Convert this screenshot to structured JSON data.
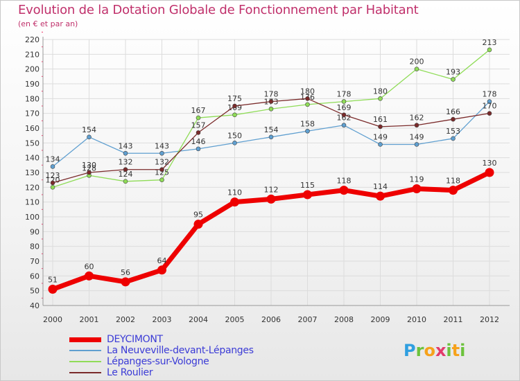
{
  "title": "Evolution de la Dotation Globale de Fonctionnement par Habitant",
  "subtitle": "(en € et par an)",
  "logo": {
    "letters": [
      "P",
      "r",
      "o",
      "x",
      "i",
      "t",
      "i"
    ]
  },
  "chart_data": {
    "type": "line",
    "title": "Evolution de la Dotation Globale de Fonctionnement par Habitant",
    "subtitle": "(en € et par an)",
    "xlabel": "",
    "ylabel": "",
    "ylim": [
      40,
      220
    ],
    "ytick_step": 10,
    "grid": true,
    "legend_position": "bottom-left",
    "categories": [
      "2000",
      "2001",
      "2002",
      "2003",
      "2004",
      "2005",
      "2006",
      "2007",
      "2008",
      "2009",
      "2010",
      "2011",
      "2012"
    ],
    "series": [
      {
        "name": "DEYCIMONT",
        "color": "#ee0000",
        "values": [
          51,
          60,
          56,
          64,
          95,
          110,
          112,
          115,
          118,
          114,
          119,
          118,
          130
        ]
      },
      {
        "name": "La Neuveville-devant-Lépanges",
        "color": "#5f9fd0",
        "values": [
          134,
          154,
          143,
          143,
          146,
          150,
          154,
          158,
          162,
          149,
          149,
          153,
          178
        ]
      },
      {
        "name": "Lépanges-sur-Vologne",
        "color": "#8fdc57",
        "values": [
          120,
          128,
          124,
          125,
          167,
          169,
          173,
          176,
          178,
          180,
          200,
          193,
          213
        ]
      },
      {
        "name": "Le Roulier",
        "color": "#7a2a2a",
        "values": [
          123,
          130,
          132,
          132,
          157,
          175,
          178,
          180,
          169,
          161,
          162,
          166,
          170
        ]
      }
    ]
  }
}
